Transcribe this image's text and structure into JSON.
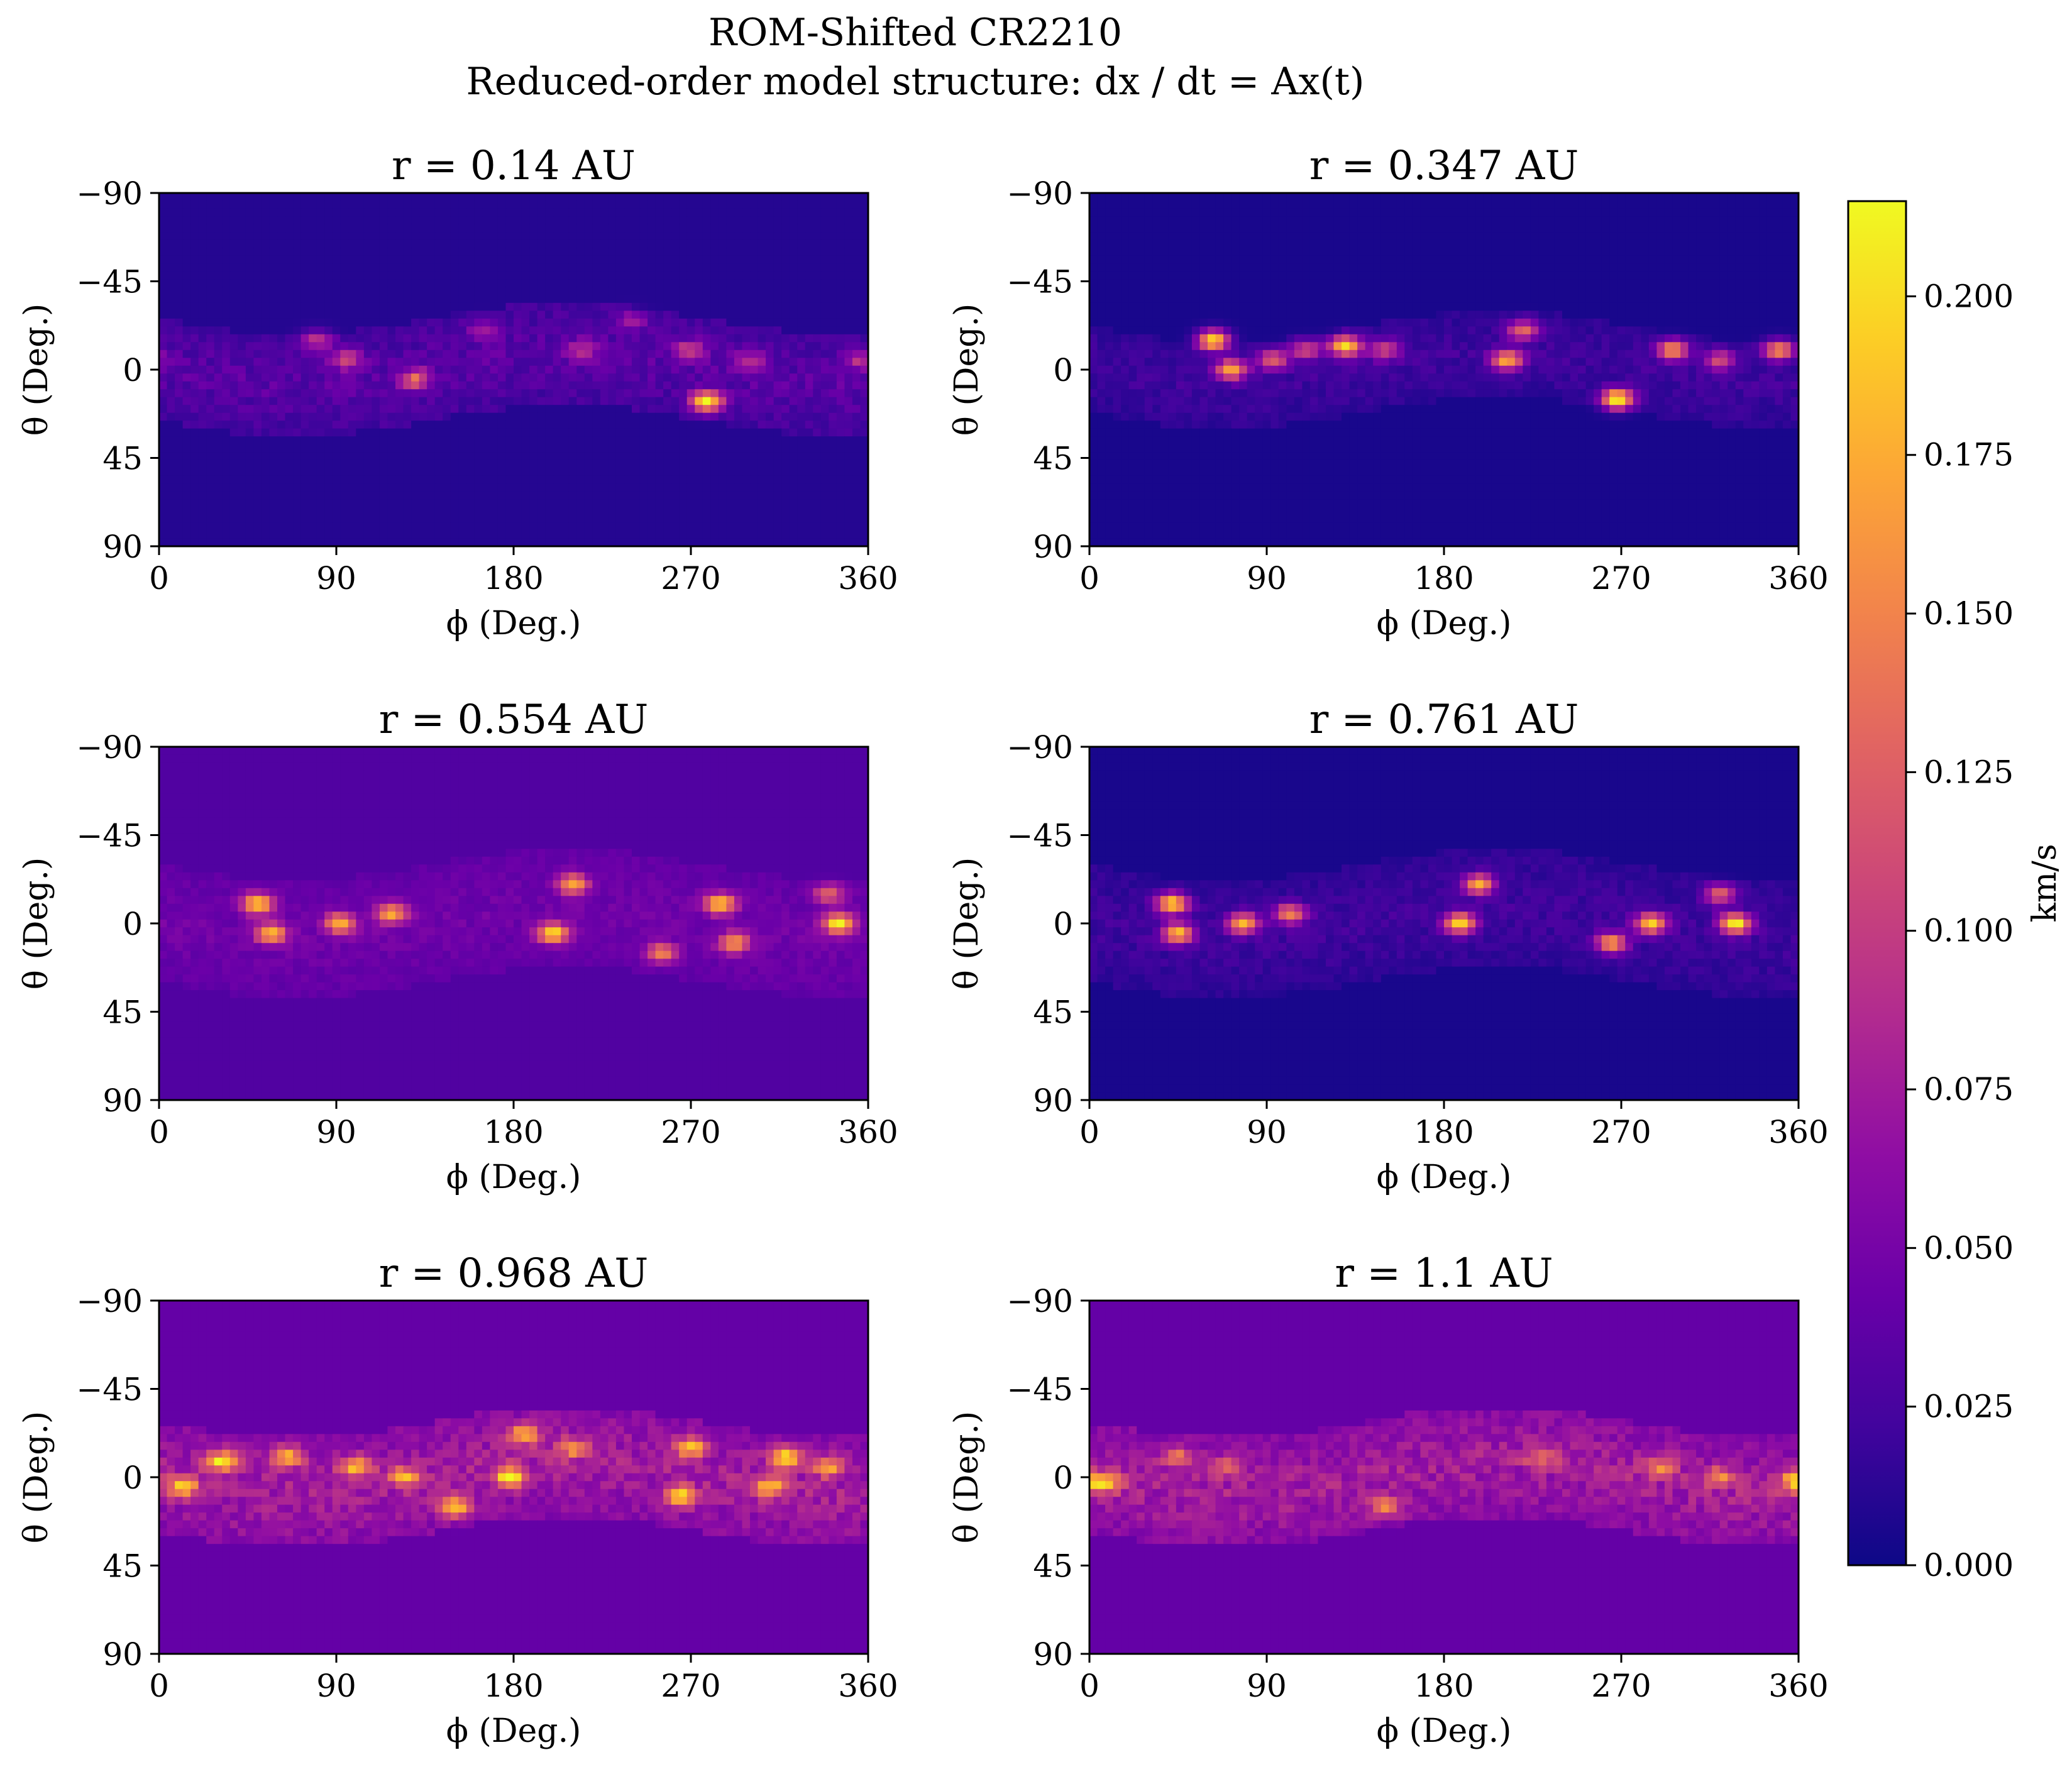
{
  "chart_data": {
    "type": "heatmap",
    "title": "ROM-Shifted CR2210",
    "subtitle": "Reduced-order model structure: dx / dt = Ax(t)",
    "colormap": "plasma",
    "colorbar": {
      "label": "km/s",
      "range": [
        0.0,
        0.215
      ],
      "ticks": [
        "0.000",
        "0.025",
        "0.050",
        "0.075",
        "0.100",
        "0.125",
        "0.150",
        "0.175",
        "0.200"
      ],
      "tick_values": [
        0.0,
        0.025,
        0.05,
        0.075,
        0.1,
        0.125,
        0.15,
        0.175,
        0.2
      ]
    },
    "axes": {
      "xlabel": "ϕ (Deg.)",
      "ylabel": "θ (Deg.)",
      "xticks": [
        "0",
        "90",
        "180",
        "270",
        "360"
      ],
      "yticks": [
        "−90",
        "−45",
        "0",
        "45",
        "90"
      ],
      "xlim": [
        0,
        360
      ],
      "ylim": [
        -90,
        90
      ]
    },
    "panels": [
      {
        "title": "r = 0.14 AU",
        "background": 0.01,
        "band_level": 0.03,
        "band_center": 0,
        "band_halfwidth": 26,
        "hotspots": [
          [
            80,
            -15,
            0.08
          ],
          [
            95,
            -5,
            0.09
          ],
          [
            130,
            5,
            0.11
          ],
          [
            165,
            -20,
            0.06
          ],
          [
            215,
            -10,
            0.07
          ],
          [
            240,
            -25,
            0.06
          ],
          [
            270,
            -10,
            0.09
          ],
          [
            278,
            16,
            0.2
          ],
          [
            300,
            -5,
            0.07
          ],
          [
            355,
            -5,
            0.07
          ]
        ]
      },
      {
        "title": "r = 0.347 AU",
        "background": 0.005,
        "band_level": 0.02,
        "band_center": 0,
        "band_halfwidth": 22,
        "hotspots": [
          [
            63,
            -15,
            0.2
          ],
          [
            72,
            0,
            0.16
          ],
          [
            93,
            -5,
            0.12
          ],
          [
            110,
            -10,
            0.1
          ],
          [
            130,
            -12,
            0.19
          ],
          [
            150,
            -10,
            0.1
          ],
          [
            212,
            -5,
            0.16
          ],
          [
            220,
            -20,
            0.12
          ],
          [
            268,
            15,
            0.21
          ],
          [
            296,
            -10,
            0.15
          ],
          [
            320,
            -5,
            0.1
          ],
          [
            350,
            -10,
            0.15
          ]
        ]
      },
      {
        "title": "r = 0.554 AU",
        "background": 0.03,
        "band_level": 0.02,
        "band_center": 0,
        "band_halfwidth": 30,
        "hotspots": [
          [
            50,
            -10,
            0.19
          ],
          [
            57,
            5,
            0.17
          ],
          [
            92,
            0,
            0.17
          ],
          [
            118,
            -5,
            0.16
          ],
          [
            200,
            5,
            0.19
          ],
          [
            210,
            -20,
            0.16
          ],
          [
            255,
            15,
            0.14
          ],
          [
            285,
            -10,
            0.18
          ],
          [
            292,
            10,
            0.15
          ],
          [
            345,
            0,
            0.2
          ],
          [
            340,
            -15,
            0.12
          ]
        ]
      },
      {
        "title": "r = 0.761 AU",
        "background": 0.005,
        "band_level": 0.02,
        "band_center": 0,
        "band_halfwidth": 30,
        "hotspots": [
          [
            42,
            -10,
            0.19
          ],
          [
            45,
            5,
            0.17
          ],
          [
            78,
            0,
            0.17
          ],
          [
            102,
            -5,
            0.14
          ],
          [
            188,
            0,
            0.19
          ],
          [
            198,
            -20,
            0.16
          ],
          [
            265,
            10,
            0.15
          ],
          [
            285,
            0,
            0.18
          ],
          [
            328,
            0,
            0.2
          ],
          [
            320,
            -15,
            0.12
          ]
        ]
      },
      {
        "title": "r = 0.968 AU",
        "background": 0.04,
        "band_level": 0.045,
        "band_center": 0,
        "band_halfwidth": 28,
        "hotspots": [
          [
            12,
            5,
            0.16
          ],
          [
            32,
            -8,
            0.18
          ],
          [
            65,
            -10,
            0.16
          ],
          [
            100,
            -5,
            0.16
          ],
          [
            125,
            0,
            0.14
          ],
          [
            150,
            15,
            0.17
          ],
          [
            178,
            0,
            0.19
          ],
          [
            185,
            -22,
            0.16
          ],
          [
            210,
            -15,
            0.13
          ],
          [
            265,
            10,
            0.17
          ],
          [
            270,
            -15,
            0.16
          ],
          [
            310,
            5,
            0.15
          ],
          [
            318,
            -10,
            0.18
          ],
          [
            340,
            -5,
            0.14
          ]
        ]
      },
      {
        "title": "r = 1.1 AU",
        "background": 0.04,
        "band_level": 0.045,
        "band_center": 0,
        "band_halfwidth": 28,
        "hotspots": [
          [
            8,
            3,
            0.16
          ],
          [
            45,
            -10,
            0.12
          ],
          [
            70,
            -5,
            0.1
          ],
          [
            150,
            15,
            0.12
          ],
          [
            230,
            -10,
            0.1
          ],
          [
            290,
            -5,
            0.12
          ],
          [
            320,
            0,
            0.12
          ],
          [
            357,
            2,
            0.14
          ]
        ]
      }
    ]
  }
}
